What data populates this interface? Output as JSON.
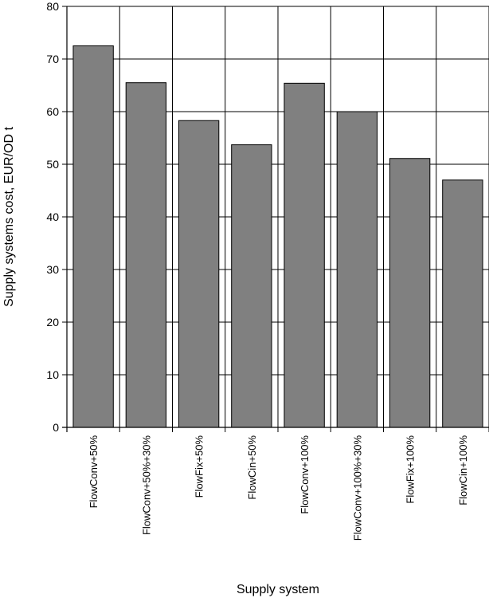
{
  "chart_data": {
    "type": "bar",
    "categories": [
      "FlowConv+50%",
      "FlowConv+50%+30%",
      "FlowFix+50%",
      "FlowCin+50%",
      "FlowConv+100%",
      "FlowConv+100%+30%",
      "FlowFix+100%",
      "FlowCin+100%"
    ],
    "values": [
      72.5,
      65.5,
      58.3,
      53.7,
      65.4,
      60.0,
      51.1,
      47.0
    ],
    "xlabel": "Supply system",
    "ylabel": "Supply systems cost, EUR/OD t",
    "ylim": [
      0,
      80
    ],
    "yticks": [
      0,
      10,
      20,
      30,
      40,
      50,
      60,
      70,
      80
    ],
    "grid": true,
    "bar_color": "#808080",
    "bar_edge_color": "#000000"
  }
}
